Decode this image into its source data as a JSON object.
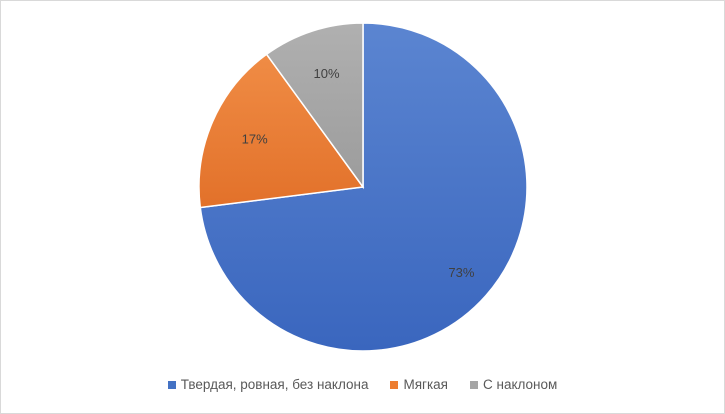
{
  "chart_data": {
    "type": "pie",
    "title": "",
    "start": "top, clockwise",
    "slices": [
      {
        "name": "Твердая, ровная, без наклона",
        "value": 73,
        "label": "73%",
        "color": "#4472c4"
      },
      {
        "name": "Мягкая",
        "value": 17,
        "label": "17%",
        "color": "#ed7d31"
      },
      {
        "name": "С наклоном",
        "value": 10,
        "label": "10%",
        "color": "#a5a5a5"
      }
    ],
    "legend_position": "bottom"
  }
}
